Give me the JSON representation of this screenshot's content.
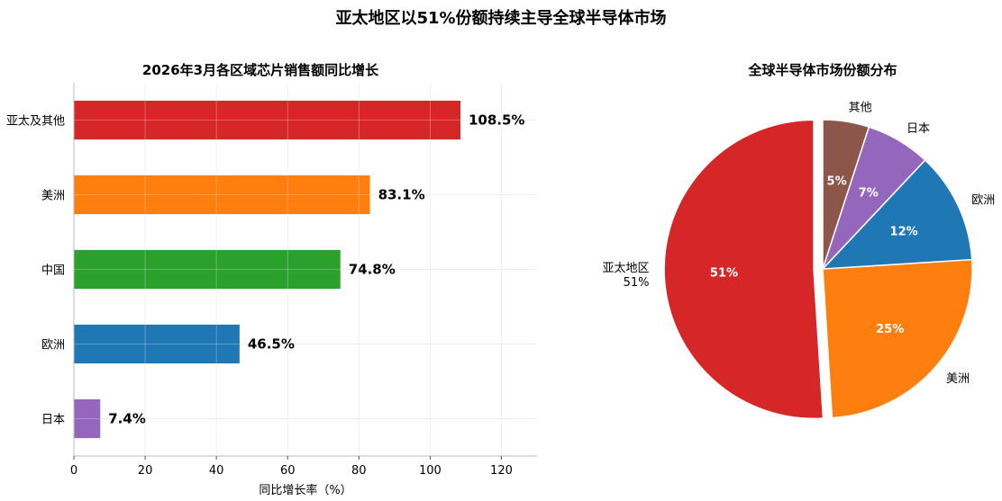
{
  "suptitle": "亚太地区以51%份额持续主导全球半导体市场",
  "chart_data": [
    {
      "type": "bar",
      "orientation": "horizontal",
      "title": "2026年3月各区域芯片销售额同比增长",
      "xlabel": "同比增长率（%）",
      "ylabel": "",
      "xlim": [
        0,
        130
      ],
      "xticks": [
        0,
        20,
        40,
        60,
        80,
        100,
        120
      ],
      "grid": true,
      "categories": [
        "亚太及其他",
        "美洲",
        "中国",
        "欧洲",
        "日本"
      ],
      "values": [
        108.5,
        83.1,
        74.8,
        46.5,
        7.4
      ],
      "value_labels": [
        "108.5%",
        "83.1%",
        "74.8%",
        "46.5%",
        "7.4%"
      ],
      "colors": [
        "#d62728",
        "#ff7f0e",
        "#2ca02c",
        "#1f77b4",
        "#9467bd"
      ]
    },
    {
      "type": "pie",
      "title": "全球半导体市场份额分布",
      "slices": [
        {
          "label": "亚太地区\n51%",
          "value": 51,
          "pct_label": "51%",
          "color": "#d62728",
          "explode": true
        },
        {
          "label": "美洲",
          "value": 25,
          "pct_label": "25%",
          "color": "#ff7f0e",
          "explode": false
        },
        {
          "label": "欧洲",
          "value": 12,
          "pct_label": "12%",
          "color": "#1f77b4",
          "explode": false
        },
        {
          "label": "日本",
          "value": 7,
          "pct_label": "7%",
          "color": "#9467bd",
          "explode": false
        },
        {
          "label": "其他",
          "value": 5,
          "pct_label": "5%",
          "color": "#8c564b",
          "explode": false
        }
      ],
      "start_angle_deg": 90,
      "direction": "counterclockwise"
    }
  ]
}
